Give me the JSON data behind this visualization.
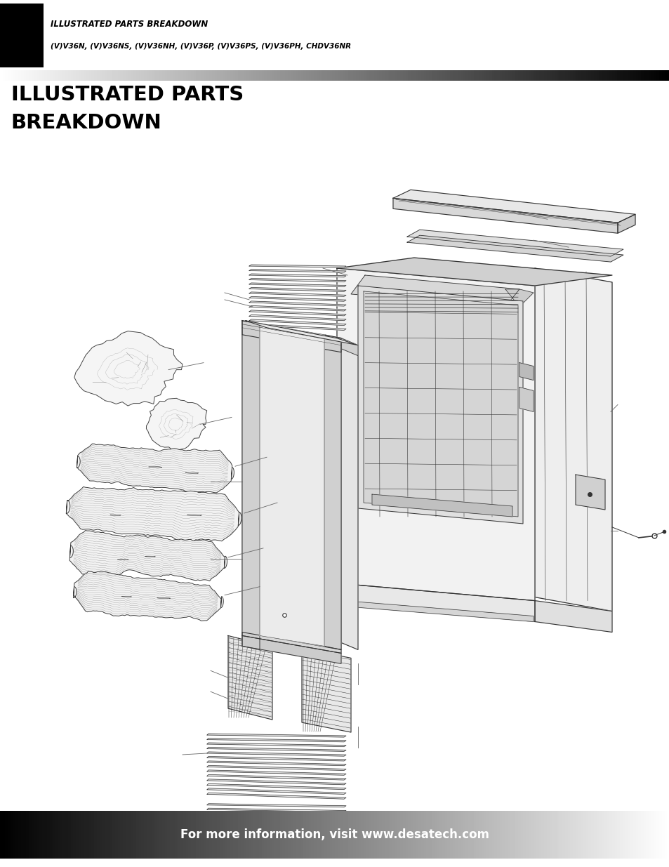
{
  "page_bg": "#ffffff",
  "header_title": "ILLUSTRATED PARTS BREAKDOWN",
  "header_subtitle": "(V)V36N, (V)V36NS, (V)V36NH, (V)V36P, (V)V36PS, (V)V36PH, CHDV36NR",
  "section_title_line1": "ILLUSTRATED PARTS",
  "section_title_line2": "BREAKDOWN",
  "footer_text": "For more information, visit www.desatech.com",
  "line_color": "#333333",
  "fill_light": "#f5f5f5",
  "fill_mid": "#e0e0e0",
  "fill_dark": "#c8c8c8",
  "fill_darker": "#b0b0b0"
}
